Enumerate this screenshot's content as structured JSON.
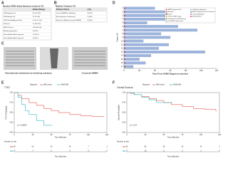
{
  "panels": {
    "a": {
      "label": "A",
      "title": "Baseline AVWS-related laboratory results (n=17)",
      "header": [
        "",
        "Median (Range)"
      ],
      "rows": [
        [
          "VWF Antigen (%)",
          "58 (12-201)"
        ],
        [
          "VWF Activity (%)",
          "31 (5-150)"
        ],
        [
          "VWF Activity/Antigen Ratio",
          "0.52 (0.2-0.9)"
        ],
        [
          "FVIII (%)",
          "72 (25-210)"
        ],
        [
          "PFA-100 (sec)",
          "180 (90-300)"
        ],
        [
          "Bleeding Symptoms",
          "9 (53%)"
        ],
        [
          "Clinically Available Diagnostic",
          "11 (65%)"
        ],
        [
          "Clinically Available Diagnostic",
          "6 (35%)"
        ]
      ]
    },
    "b": {
      "label": "B",
      "title": "Multimer Testing (n=17)",
      "header": [
        "Multimer Pattern",
        "n (%)"
      ],
      "rows": [
        [
          "Loss of HMWM or Moderate",
          "9 (53%)"
        ],
        [
          "Electrophoretic Interference",
          "5 (29%)"
        ],
        [
          "Normal or Mildly Decreased HMWM",
          "3 (18%)"
        ]
      ]
    },
    "c": {
      "label": "C",
      "captions": [
        "Electrophoretic interference by interfering substance",
        "Conserved HMWM"
      ]
    },
    "d": {
      "label": "D",
      "type": "bar",
      "y_label": "Patient ID",
      "x_label": "Time From AVWS Diagnosis (months)",
      "categories": [
        "1",
        "2",
        "3",
        "4",
        "5",
        "6",
        "7",
        "8",
        "9",
        "10",
        "11",
        "12",
        "13",
        "14",
        "15",
        "16",
        "17"
      ],
      "values": [
        40,
        62,
        88,
        55,
        30,
        70,
        95,
        48,
        60,
        25,
        58,
        45,
        105,
        35,
        20,
        28,
        12
      ],
      "color": "#9db4dd",
      "xlim": [
        0,
        120
      ],
      "xticks": [
        0,
        20,
        40,
        60,
        80,
        100,
        120
      ],
      "legend": [
        "AVWS Diagnosis Date",
        "Bleeding",
        "Death",
        "First-line MM Therapy",
        "Subsequent-line MM Therapy",
        "Prior MM Treatment Start",
        "No Bleeding Symptoms",
        "AVWS Diagnosis Date Pre-Treatment",
        "Continued Bleeding",
        "Bleeding Event"
      ]
    },
    "e": {
      "label": "E",
      "type": "step",
      "title": "TTNT",
      "y_label": "TTNT Probability",
      "x_label": "Time (Months)",
      "legend_title": "Diagnosis",
      "pvalue": "p = 0.0064",
      "xlim": [
        0,
        125
      ],
      "xticks": [
        0,
        25,
        50,
        75,
        100,
        125
      ],
      "ylim": [
        0,
        1
      ],
      "yticks": [
        {
          "value": 0,
          "label": "0.00"
        },
        {
          "value": 0.25,
          "label": "0.25"
        },
        {
          "value": 0.5,
          "label": "0.50"
        },
        {
          "value": 0.75,
          "label": "0.75"
        },
        {
          "value": 1,
          "label": "1.00"
        }
      ],
      "series": [
        {
          "name": "MM Control",
          "color": "#e8554e",
          "x": [
            0,
            5,
            10,
            20,
            30,
            40,
            50,
            60,
            75,
            90,
            105,
            120
          ],
          "y": [
            1,
            0.93,
            0.85,
            0.75,
            0.68,
            0.6,
            0.55,
            0.5,
            0.45,
            0.42,
            0.4,
            0.4
          ]
        },
        {
          "name": "AVWS MM",
          "color": "#2cb5c0",
          "x": [
            0,
            5,
            10,
            15,
            20,
            30,
            40,
            50
          ],
          "y": [
            1,
            0.88,
            0.7,
            0.55,
            0.45,
            0.3,
            0.18,
            0.18
          ]
        }
      ],
      "risk_title": "Number at risk",
      "risk": [
        [
          99,
          62,
          33,
          18,
          7,
          1
        ],
        [
          17,
          7,
          2,
          0,
          0,
          0
        ]
      ]
    },
    "f": {
      "label": "F",
      "type": "step",
      "title": "Overall Survival",
      "y_label": "Survival Probability",
      "x_label": "Time (Months)",
      "legend_title": "Diagnosis",
      "pvalue": "p = 0.37",
      "xlim": [
        0,
        125
      ],
      "xticks": [
        0,
        25,
        50,
        75,
        100,
        125
      ],
      "ylim": [
        0,
        1
      ],
      "yticks": [
        {
          "value": 0,
          "label": "0.00"
        },
        {
          "value": 0.25,
          "label": "0.25"
        },
        {
          "value": 0.5,
          "label": "0.50"
        },
        {
          "value": 0.75,
          "label": "0.75"
        },
        {
          "value": 1,
          "label": "1.00"
        }
      ],
      "series": [
        {
          "name": "MM Control",
          "color": "#e8554e",
          "x": [
            0,
            5,
            10,
            20,
            30,
            40,
            50,
            60,
            75,
            90,
            105,
            120
          ],
          "y": [
            1,
            0.98,
            0.95,
            0.9,
            0.85,
            0.8,
            0.75,
            0.7,
            0.65,
            0.6,
            0.58,
            0.55
          ]
        },
        {
          "name": "AVWS MM",
          "color": "#2cb5c0",
          "x": [
            0,
            10,
            20,
            30,
            40,
            60
          ],
          "y": [
            1,
            0.95,
            0.88,
            0.82,
            0.75,
            0.75
          ]
        }
      ],
      "risk_title": "Number at risk",
      "risk": [
        [
          99,
          80,
          55,
          32,
          14,
          3
        ],
        [
          17,
          10,
          5,
          2,
          1,
          0
        ]
      ]
    }
  }
}
